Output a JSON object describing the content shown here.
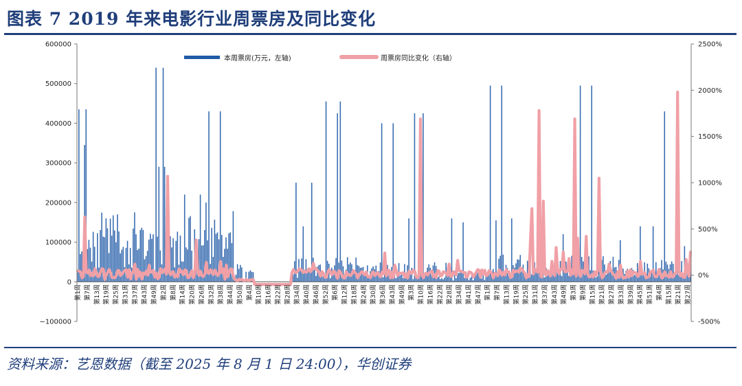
{
  "header": {
    "title": "图表 7   2019 年来电影行业周票房及同比变化"
  },
  "footer": {
    "source": "资料来源：艺恩数据（截至 2025 年 8 月 1 日 24:00），华创证券"
  },
  "colors": {
    "bar": "#1f5aa6",
    "line": "#f0a0a6",
    "title": "#1f3e7a"
  },
  "chart_data": {
    "type": "bar+line",
    "y_left": {
      "ticks": [
        "600000",
        "500000",
        "400000",
        "300000",
        "200000",
        "100000",
        "0",
        "−100000"
      ],
      "min": -100000,
      "max": 600000
    },
    "y_right": {
      "ticks": [
        "2500%",
        "2000%",
        "1500%",
        "1000%",
        "500%",
        "0%",
        "-500%"
      ],
      "min": -500,
      "max": 2500
    },
    "x_tick_labels": [
      "第1周",
      "第7周",
      "第13周",
      "第19周",
      "第25周",
      "第31周",
      "第37周",
      "第43周",
      "第49周",
      "第2周",
      "第8周",
      "第14周",
      "第20周",
      "第26周",
      "第32周",
      "第38周",
      "第44周",
      "第50周",
      "第4周",
      "第10周",
      "第16周",
      "第22周",
      "第28周",
      "第34周",
      "第40周",
      "第46周",
      "第52周",
      "第6周",
      "第12周",
      "第18周",
      "第24周",
      "第30周",
      "第36周",
      "第43周",
      "第49周",
      "第3周",
      "第10周",
      "第16周",
      "第22周",
      "第28周",
      "第34周",
      "第41周",
      "第47周",
      "第1周",
      "第7周",
      "第13周",
      "第19周",
      "第25周",
      "第31周",
      "第37周",
      "第43周",
      "第49周",
      "第3周",
      "第9周",
      "第15周",
      "第21周",
      "第27周",
      "第33周",
      "第39周",
      "第45周",
      "第51周",
      "第4周",
      "第15周",
      "第21周",
      "第27周"
    ],
    "series": [
      {
        "name": "本周票房(万元，左轴)",
        "type": "bar",
        "axis": "left",
        "peaks": [
          {
            "week_index": 1,
            "value": 435000
          },
          {
            "week_index": 5,
            "value": 345000
          },
          {
            "week_index": 6,
            "value": 435000
          },
          {
            "week_index": 55,
            "value": 540000
          },
          {
            "week_index": 57,
            "value": 290000
          },
          {
            "week_index": 60,
            "value": 540000
          },
          {
            "week_index": 61,
            "value": 290000
          },
          {
            "week_index": 92,
            "value": 430000
          },
          {
            "week_index": 100,
            "value": 430000
          },
          {
            "week_index": 153,
            "value": 250000
          },
          {
            "week_index": 164,
            "value": 250000
          },
          {
            "week_index": 174,
            "value": 455000
          },
          {
            "week_index": 182,
            "value": 425000
          },
          {
            "week_index": 184,
            "value": 455000
          },
          {
            "week_index": 213,
            "value": 400000
          },
          {
            "week_index": 221,
            "value": 400000
          },
          {
            "week_index": 236,
            "value": 425000
          },
          {
            "week_index": 242,
            "value": 425000
          },
          {
            "week_index": 289,
            "value": 495000
          },
          {
            "week_index": 297,
            "value": 495000
          },
          {
            "week_index": 352,
            "value": 495000
          },
          {
            "week_index": 360,
            "value": 495000
          },
          {
            "week_index": 411,
            "value": 430000
          }
        ]
      },
      {
        "name": "周票房同比变化（右轴）",
        "type": "line",
        "axis": "right",
        "peaks": [
          {
            "week_index": 5,
            "value": 630
          },
          {
            "week_index": 63,
            "value": 1070
          },
          {
            "week_index": 83,
            "value": 380
          },
          {
            "week_index": 240,
            "value": 1690
          },
          {
            "week_index": 318,
            "value": 720
          },
          {
            "week_index": 323,
            "value": 1780
          },
          {
            "week_index": 348,
            "value": 1690
          },
          {
            "week_index": 365,
            "value": 1050
          },
          {
            "week_index": 420,
            "value": 1980
          }
        ]
      }
    ]
  }
}
